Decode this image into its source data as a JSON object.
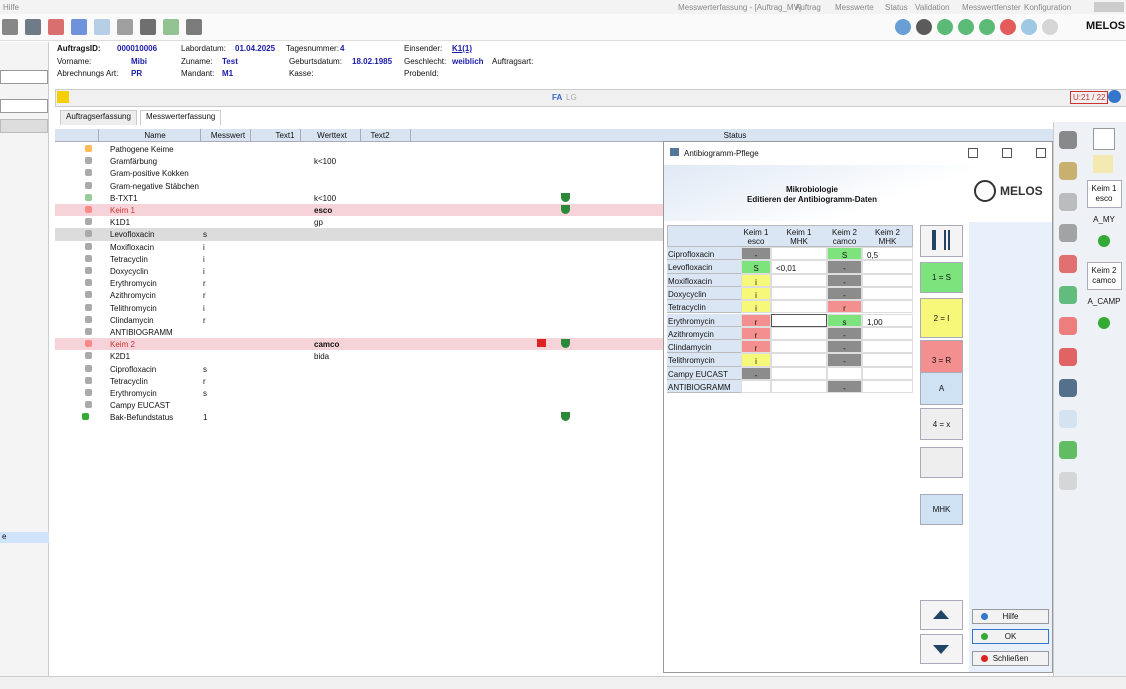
{
  "menu": {
    "left": "Hilfe",
    "window_title": "Messwerterfassung - [Auftrag_MV]",
    "items": [
      "Auftrag",
      "Messwerte",
      "Status",
      "Validation",
      "Messwertfenster",
      "Konfiguration"
    ]
  },
  "toolbar": {
    "logo": "MELOS"
  },
  "order": {
    "fields": [
      {
        "label": "AuftragsID:",
        "value": "000010006"
      },
      {
        "label": "Labordatum:",
        "value": "01.04.2025"
      },
      {
        "label": "Tagesnummer:",
        "value": "4"
      },
      {
        "label": "Einsender:",
        "value": "K1(1)"
      },
      {
        "label": "Vorname:",
        "value": "Mibi"
      },
      {
        "label": "Zuname:",
        "value": "Test"
      },
      {
        "label": "Geburtsdatum:",
        "value": "18.02.1985"
      },
      {
        "label": "Geschlecht:",
        "value": "weiblich"
      },
      {
        "label": "Auftragsart:"
      },
      {
        "label": "Abrechnungs Art:",
        "value": "PR"
      },
      {
        "label": "Mandant:",
        "value": "M1"
      },
      {
        "label": "Kasse:"
      },
      {
        "label": "ProbenId:"
      }
    ]
  },
  "info_bar": {
    "fa": "FA",
    "lg": "LG",
    "counter": "U:21 / 22"
  },
  "tabs": [
    "Auftragserfassung",
    "Messwerterfassung"
  ],
  "table": {
    "columns": [
      "Name",
      "Messwert",
      "Text1",
      "Werttext",
      "Text2",
      "Status"
    ],
    "rows": [
      {
        "name": "Pathogene Keime"
      },
      {
        "name": "Gramfärbung",
        "werttext": "k<100"
      },
      {
        "name": "Gram-positive Kokken"
      },
      {
        "name": "Gram-negative Stäbchen"
      },
      {
        "name": "B-TXT1",
        "werttext": "k<100"
      },
      {
        "name": "Keim 1",
        "werttext": "esco"
      },
      {
        "name": "K1D1",
        "werttext": "gp"
      },
      {
        "name": "Levofloxacin",
        "messwert": "s"
      },
      {
        "name": "Moxifloxacin",
        "messwert": "i"
      },
      {
        "name": "Tetracyclin",
        "messwert": "i"
      },
      {
        "name": "Doxycyclin",
        "messwert": "i"
      },
      {
        "name": "Erythromycin",
        "messwert": "r"
      },
      {
        "name": "Azithromycin",
        "messwert": "r"
      },
      {
        "name": "Telithromycin",
        "messwert": "i"
      },
      {
        "name": "Clindamycin",
        "messwert": "r"
      },
      {
        "name": "ANTIBIOGRAMM"
      },
      {
        "name": "Keim 2",
        "werttext": "camco"
      },
      {
        "name": "K2D1",
        "werttext": "bida"
      },
      {
        "name": "Ciprofloxacin",
        "messwert": "s"
      },
      {
        "name": "Tetracyclin",
        "messwert": "r"
      },
      {
        "name": "Erythromycin",
        "messwert": "s"
      },
      {
        "name": "Campy EUCAST"
      },
      {
        "name": "Bak-Befundstatus",
        "messwert": "1"
      }
    ]
  },
  "sidebar": {
    "selected": "e"
  },
  "dialog": {
    "title": "Antibiogramm-Pflege",
    "heading": "Mikrobiologie",
    "subheading": "Editieren der Antibiogramm-Daten",
    "logo": "MELOS",
    "columns": [
      {
        "top": "Keim 1",
        "bottom": "esco"
      },
      {
        "top": "Keim 1",
        "bottom": "MHK"
      },
      {
        "top": "Keim 2",
        "bottom": "camco"
      },
      {
        "top": "Keim 2",
        "bottom": "MHK"
      }
    ],
    "rows": [
      {
        "name": "Ciprofloxacin",
        "cells": [
          "-",
          null,
          "S",
          "0,5"
        ]
      },
      {
        "name": "Levofloxacin",
        "cells": [
          "S",
          "<0,01",
          "-",
          null
        ]
      },
      {
        "name": "Moxifloxacin",
        "cells": [
          "i",
          null,
          "-",
          null
        ]
      },
      {
        "name": "Doxycyclin",
        "cells": [
          "i",
          null,
          "-",
          null
        ]
      },
      {
        "name": "Tetracyclin",
        "cells": [
          "i",
          null,
          "r",
          null
        ]
      },
      {
        "name": "Erythromycin",
        "cells": [
          "r",
          null,
          "s",
          "1,00"
        ]
      },
      {
        "name": "Azithromycin",
        "cells": [
          "r",
          null,
          "-",
          null
        ]
      },
      {
        "name": "Clindamycin",
        "cells": [
          "r",
          null,
          "-",
          null
        ]
      },
      {
        "name": "Telithromycin",
        "cells": [
          "i",
          null,
          "-",
          null
        ]
      },
      {
        "name": "Campy EUCAST",
        "cells": [
          "-",
          null,
          null,
          null
        ]
      },
      {
        "name": "ANTIBIOGRAMM",
        "cells": [
          null,
          null,
          "-",
          null
        ]
      }
    ],
    "buttons": [
      "1 = S",
      "2 = I",
      "3 = R",
      "A",
      "4 = x",
      "MHK"
    ],
    "actions": [
      "Hilfe",
      "OK",
      "Schließen"
    ]
  },
  "side_panel": [
    {
      "line1": "Keim 1",
      "line2": "esco",
      "code": "A_MY"
    },
    {
      "line1": "Keim 2",
      "line2": "camco",
      "code": "A_CAMP"
    }
  ]
}
